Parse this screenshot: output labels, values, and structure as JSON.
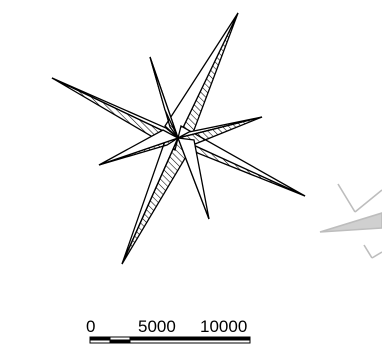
{
  "map": {
    "compass": {
      "icon": "compass-rose-icon",
      "stroke_color": "#000000",
      "hatch_color": "#000000",
      "fill_color": "#ffffff"
    },
    "north_arrow": {
      "icon": "north-arrow-icon",
      "color": "#bdbdbd"
    },
    "scale_bar": {
      "labels": [
        "0",
        "5000",
        "10000"
      ],
      "bar_color": "#000000"
    }
  }
}
